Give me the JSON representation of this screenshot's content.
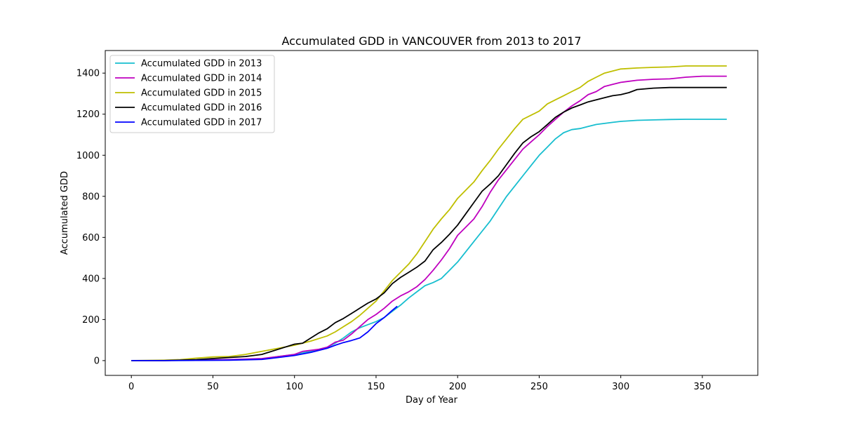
{
  "chart_data": {
    "type": "line",
    "title": "Accumulated GDD in  VANCOUVER from 2013 to 2017",
    "xlabel": "Day of Year",
    "ylabel": "Accumulated GDD",
    "xlim": [
      -16,
      384
    ],
    "ylim": [
      -72,
      1510
    ],
    "x_ticks": [
      0,
      50,
      100,
      150,
      200,
      250,
      300,
      350
    ],
    "y_ticks": [
      0,
      200,
      400,
      600,
      800,
      1000,
      1200,
      1400
    ],
    "grid": false,
    "legend_position": "upper-left",
    "series": [
      {
        "name": "Accumulated GDD in 2013",
        "color": "#17becf",
        "points": [
          [
            0,
            0
          ],
          [
            20,
            0
          ],
          [
            40,
            1
          ],
          [
            60,
            3
          ],
          [
            80,
            8
          ],
          [
            90,
            20
          ],
          [
            100,
            30
          ],
          [
            110,
            45
          ],
          [
            120,
            65
          ],
          [
            125,
            85
          ],
          [
            130,
            110
          ],
          [
            135,
            140
          ],
          [
            140,
            160
          ],
          [
            145,
            175
          ],
          [
            150,
            190
          ],
          [
            155,
            210
          ],
          [
            160,
            240
          ],
          [
            165,
            270
          ],
          [
            170,
            305
          ],
          [
            175,
            335
          ],
          [
            180,
            365
          ],
          [
            185,
            380
          ],
          [
            190,
            400
          ],
          [
            195,
            440
          ],
          [
            200,
            480
          ],
          [
            205,
            530
          ],
          [
            210,
            580
          ],
          [
            215,
            630
          ],
          [
            220,
            680
          ],
          [
            225,
            740
          ],
          [
            230,
            800
          ],
          [
            235,
            850
          ],
          [
            240,
            900
          ],
          [
            245,
            950
          ],
          [
            250,
            1000
          ],
          [
            255,
            1040
          ],
          [
            260,
            1080
          ],
          [
            265,
            1110
          ],
          [
            270,
            1125
          ],
          [
            275,
            1130
          ],
          [
            280,
            1140
          ],
          [
            285,
            1150
          ],
          [
            290,
            1155
          ],
          [
            295,
            1160
          ],
          [
            300,
            1165
          ],
          [
            310,
            1170
          ],
          [
            320,
            1172
          ],
          [
            330,
            1174
          ],
          [
            340,
            1175
          ],
          [
            350,
            1175
          ],
          [
            365,
            1175
          ]
        ]
      },
      {
        "name": "Accumulated GDD in 2014",
        "color": "#bf00bf",
        "points": [
          [
            0,
            0
          ],
          [
            20,
            0
          ],
          [
            40,
            2
          ],
          [
            60,
            5
          ],
          [
            80,
            10
          ],
          [
            90,
            20
          ],
          [
            100,
            30
          ],
          [
            105,
            45
          ],
          [
            110,
            50
          ],
          [
            115,
            55
          ],
          [
            120,
            65
          ],
          [
            125,
            90
          ],
          [
            130,
            100
          ],
          [
            135,
            130
          ],
          [
            140,
            165
          ],
          [
            145,
            200
          ],
          [
            150,
            225
          ],
          [
            155,
            255
          ],
          [
            160,
            290
          ],
          [
            165,
            315
          ],
          [
            170,
            335
          ],
          [
            175,
            360
          ],
          [
            180,
            395
          ],
          [
            185,
            440
          ],
          [
            190,
            490
          ],
          [
            195,
            545
          ],
          [
            200,
            610
          ],
          [
            205,
            650
          ],
          [
            210,
            690
          ],
          [
            215,
            750
          ],
          [
            220,
            820
          ],
          [
            225,
            880
          ],
          [
            230,
            930
          ],
          [
            235,
            980
          ],
          [
            240,
            1030
          ],
          [
            245,
            1065
          ],
          [
            250,
            1100
          ],
          [
            255,
            1140
          ],
          [
            260,
            1175
          ],
          [
            265,
            1210
          ],
          [
            270,
            1240
          ],
          [
            275,
            1265
          ],
          [
            280,
            1295
          ],
          [
            285,
            1310
          ],
          [
            290,
            1335
          ],
          [
            295,
            1345
          ],
          [
            300,
            1355
          ],
          [
            310,
            1365
          ],
          [
            320,
            1370
          ],
          [
            330,
            1372
          ],
          [
            340,
            1380
          ],
          [
            350,
            1385
          ],
          [
            365,
            1385
          ]
        ]
      },
      {
        "name": "Accumulated GDD in 2015",
        "color": "#bfbf00",
        "points": [
          [
            0,
            0
          ],
          [
            20,
            2
          ],
          [
            30,
            5
          ],
          [
            40,
            12
          ],
          [
            50,
            18
          ],
          [
            60,
            20
          ],
          [
            70,
            30
          ],
          [
            80,
            45
          ],
          [
            90,
            60
          ],
          [
            100,
            75
          ],
          [
            110,
            95
          ],
          [
            120,
            120
          ],
          [
            125,
            140
          ],
          [
            130,
            165
          ],
          [
            135,
            190
          ],
          [
            140,
            220
          ],
          [
            145,
            255
          ],
          [
            150,
            290
          ],
          [
            155,
            340
          ],
          [
            160,
            390
          ],
          [
            165,
            430
          ],
          [
            170,
            470
          ],
          [
            175,
            520
          ],
          [
            180,
            580
          ],
          [
            185,
            640
          ],
          [
            190,
            690
          ],
          [
            195,
            735
          ],
          [
            200,
            790
          ],
          [
            205,
            830
          ],
          [
            210,
            870
          ],
          [
            215,
            925
          ],
          [
            220,
            975
          ],
          [
            225,
            1030
          ],
          [
            230,
            1080
          ],
          [
            235,
            1130
          ],
          [
            240,
            1175
          ],
          [
            245,
            1195
          ],
          [
            250,
            1215
          ],
          [
            255,
            1250
          ],
          [
            260,
            1270
          ],
          [
            265,
            1290
          ],
          [
            270,
            1310
          ],
          [
            275,
            1330
          ],
          [
            280,
            1360
          ],
          [
            285,
            1380
          ],
          [
            290,
            1400
          ],
          [
            295,
            1410
          ],
          [
            300,
            1420
          ],
          [
            310,
            1425
          ],
          [
            320,
            1428
          ],
          [
            330,
            1430
          ],
          [
            340,
            1435
          ],
          [
            350,
            1435
          ],
          [
            365,
            1435
          ]
        ]
      },
      {
        "name": "Accumulated GDD in 2016",
        "color": "#000000",
        "points": [
          [
            0,
            0
          ],
          [
            20,
            0
          ],
          [
            30,
            2
          ],
          [
            40,
            5
          ],
          [
            50,
            10
          ],
          [
            60,
            15
          ],
          [
            70,
            20
          ],
          [
            80,
            30
          ],
          [
            90,
            55
          ],
          [
            100,
            80
          ],
          [
            105,
            85
          ],
          [
            110,
            110
          ],
          [
            115,
            135
          ],
          [
            120,
            155
          ],
          [
            125,
            185
          ],
          [
            130,
            205
          ],
          [
            135,
            230
          ],
          [
            140,
            255
          ],
          [
            145,
            280
          ],
          [
            150,
            300
          ],
          [
            155,
            330
          ],
          [
            160,
            375
          ],
          [
            165,
            405
          ],
          [
            170,
            430
          ],
          [
            175,
            455
          ],
          [
            180,
            485
          ],
          [
            185,
            540
          ],
          [
            190,
            575
          ],
          [
            195,
            615
          ],
          [
            200,
            660
          ],
          [
            205,
            715
          ],
          [
            210,
            770
          ],
          [
            215,
            825
          ],
          [
            220,
            860
          ],
          [
            225,
            900
          ],
          [
            230,
            955
          ],
          [
            235,
            1010
          ],
          [
            240,
            1060
          ],
          [
            245,
            1090
          ],
          [
            250,
            1115
          ],
          [
            255,
            1150
          ],
          [
            260,
            1185
          ],
          [
            265,
            1210
          ],
          [
            270,
            1230
          ],
          [
            275,
            1245
          ],
          [
            280,
            1260
          ],
          [
            285,
            1270
          ],
          [
            290,
            1280
          ],
          [
            295,
            1290
          ],
          [
            300,
            1295
          ],
          [
            305,
            1305
          ],
          [
            310,
            1320
          ],
          [
            320,
            1327
          ],
          [
            330,
            1330
          ],
          [
            340,
            1330
          ],
          [
            350,
            1330
          ],
          [
            365,
            1330
          ]
        ]
      },
      {
        "name": "Accumulated GDD in 2017",
        "color": "#0000ff",
        "points": [
          [
            0,
            0
          ],
          [
            20,
            0
          ],
          [
            40,
            1
          ],
          [
            60,
            2
          ],
          [
            80,
            6
          ],
          [
            90,
            15
          ],
          [
            100,
            25
          ],
          [
            110,
            40
          ],
          [
            120,
            60
          ],
          [
            125,
            75
          ],
          [
            130,
            88
          ],
          [
            135,
            98
          ],
          [
            140,
            110
          ],
          [
            145,
            140
          ],
          [
            150,
            180
          ],
          [
            155,
            210
          ],
          [
            160,
            245
          ],
          [
            163,
            265
          ]
        ]
      }
    ]
  }
}
